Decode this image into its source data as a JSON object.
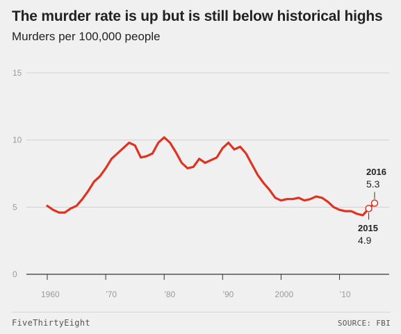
{
  "title": "The murder rate is up but is still below historical highs",
  "subtitle": "Murders per 100,000 people",
  "footer": {
    "brand": "FiveThirtyEight",
    "source": "SOURCE: FBI"
  },
  "colors": {
    "line": "#e03221",
    "background": "#f0f0f0",
    "grid": "#cfcfcf",
    "axis": "#333333",
    "tick_text": "#9a9a9a"
  },
  "chart_data": {
    "type": "line",
    "title": "The murder rate is up but is still below historical highs",
    "ylabel": "Murders per 100,000 people",
    "xlim": [
      1960,
      2016
    ],
    "ylim": [
      0,
      15
    ],
    "y_ticks": [
      0,
      5,
      10,
      15
    ],
    "x_ticks": [
      {
        "value": 1960,
        "label": "1960"
      },
      {
        "value": 1970,
        "label": "’70"
      },
      {
        "value": 1980,
        "label": "’80"
      },
      {
        "value": 1990,
        "label": "’90"
      },
      {
        "value": 2000,
        "label": "2000"
      },
      {
        "value": 2010,
        "label": "’10"
      }
    ],
    "grid": true,
    "x": [
      1960,
      1961,
      1962,
      1963,
      1964,
      1965,
      1966,
      1967,
      1968,
      1969,
      1970,
      1971,
      1972,
      1973,
      1974,
      1975,
      1976,
      1977,
      1978,
      1979,
      1980,
      1981,
      1982,
      1983,
      1984,
      1985,
      1986,
      1987,
      1988,
      1989,
      1990,
      1991,
      1992,
      1993,
      1994,
      1995,
      1996,
      1997,
      1998,
      1999,
      2000,
      2001,
      2002,
      2003,
      2004,
      2005,
      2006,
      2007,
      2008,
      2009,
      2010,
      2011,
      2012,
      2013,
      2014,
      2015,
      2016
    ],
    "series": [
      {
        "values": [
          5.1,
          4.8,
          4.6,
          4.6,
          4.9,
          5.1,
          5.6,
          6.2,
          6.9,
          7.3,
          7.9,
          8.6,
          9.0,
          9.4,
          9.8,
          9.6,
          8.7,
          8.8,
          9.0,
          9.8,
          10.2,
          9.8,
          9.1,
          8.3,
          7.9,
          8.0,
          8.6,
          8.3,
          8.5,
          8.7,
          9.4,
          9.8,
          9.3,
          9.5,
          9.0,
          8.2,
          7.4,
          6.8,
          6.3,
          5.7,
          5.5,
          5.6,
          5.6,
          5.7,
          5.5,
          5.6,
          5.8,
          5.7,
          5.4,
          5.0,
          4.8,
          4.7,
          4.7,
          4.5,
          4.4,
          4.9,
          5.3
        ]
      }
    ],
    "annotations": [
      {
        "year": "2016",
        "value": "5.3"
      },
      {
        "year": "2015",
        "value": "4.9"
      }
    ]
  }
}
